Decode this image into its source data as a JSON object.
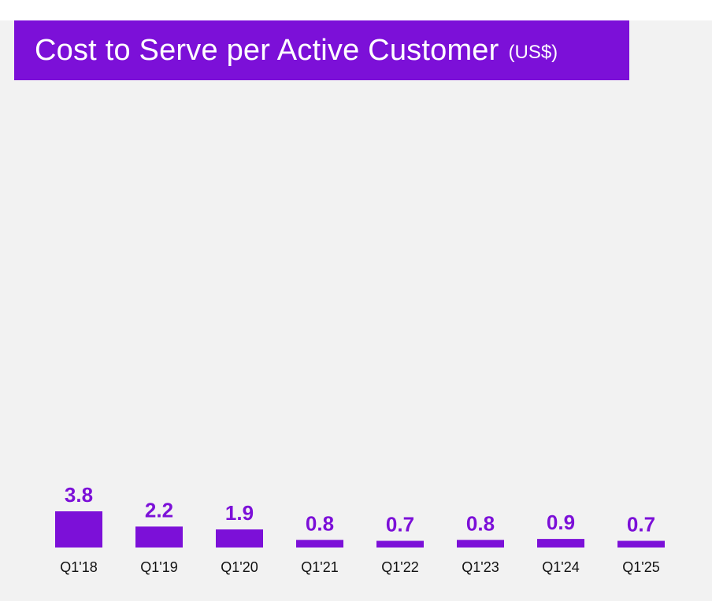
{
  "header": {
    "title": "Cost to Serve per Active Customer",
    "unit": "(US$)"
  },
  "colors": {
    "accent": "#7c10d8",
    "panel_background": "#f2f2f2"
  },
  "chart_data": {
    "type": "bar",
    "title": "Cost to Serve per Active Customer (US$)",
    "categories": [
      "Q1'18",
      "Q1'19",
      "Q1'20",
      "Q1'21",
      "Q1'22",
      "Q1'23",
      "Q1'24",
      "Q1'25"
    ],
    "values": [
      3.8,
      2.2,
      1.9,
      0.8,
      0.7,
      0.8,
      0.9,
      0.7
    ],
    "value_labels": [
      "3.8",
      "2.2",
      "1.9",
      "0.8",
      "0.7",
      "0.8",
      "0.9",
      "0.7"
    ],
    "xlabel": "",
    "ylabel": "",
    "ylim": [
      0,
      3.8
    ],
    "grid": false,
    "legend": "none"
  }
}
